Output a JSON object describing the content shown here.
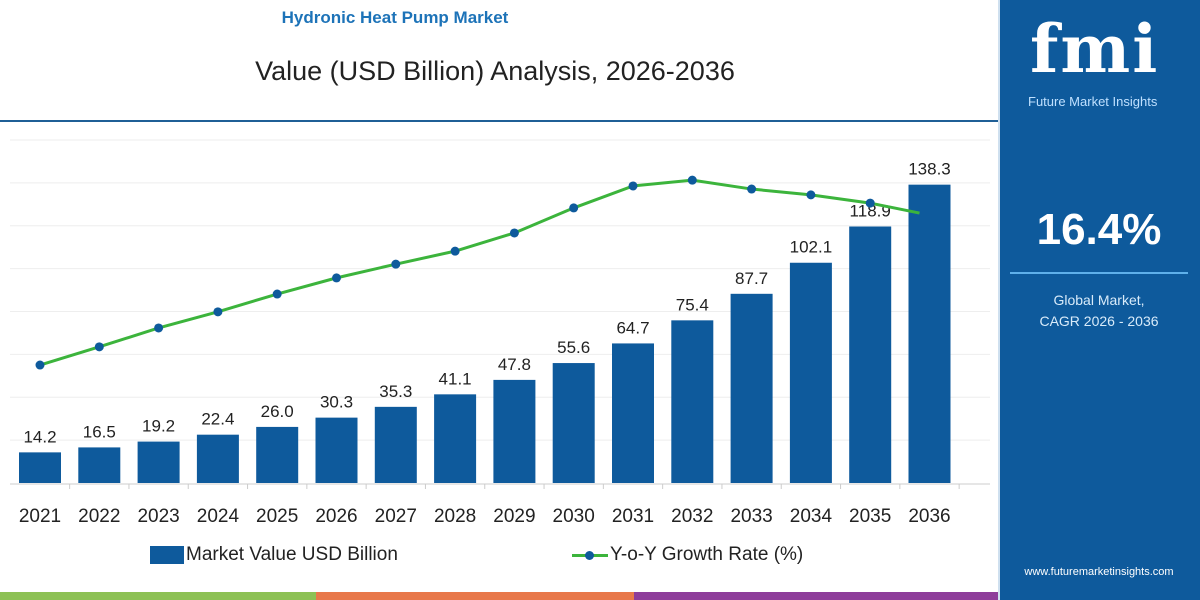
{
  "header": {
    "title": "Hydronic Heat Pump Market",
    "subtitle": "Value (USD Billion) Analysis, 2026-2036"
  },
  "sidebar": {
    "logo_text": "fmi",
    "logo_subtitle": "Future Market Insights",
    "cagr_value": "16.4%",
    "cagr_label_1": "Global Market,",
    "cagr_label_2": "CAGR 2026 - 2036",
    "website": "www.futuremarketinsights.com"
  },
  "colors": {
    "bar": "#0e5a9c",
    "line": "#3cb43c",
    "marker": "#0e5a9c",
    "panel": "#0e5a9c",
    "stripes": [
      "#8dc155",
      "#e8784a",
      "#8e3d9a"
    ]
  },
  "chart_data": {
    "type": "bar+line",
    "title": "Value (USD Billion) Analysis, 2026-2036",
    "categories": [
      "2021",
      "2022",
      "2023",
      "2024",
      "2025",
      "2026",
      "2027",
      "2028",
      "2029",
      "2030",
      "2031",
      "2032",
      "2033",
      "2034",
      "2035",
      "2036"
    ],
    "series": [
      {
        "name": "Market Value USD Billion",
        "type": "bar",
        "values": [
          14.2,
          16.5,
          19.2,
          22.4,
          26.0,
          30.3,
          35.3,
          41.1,
          47.8,
          55.6,
          64.7,
          75.4,
          87.7,
          102.1,
          118.9,
          138.3
        ],
        "labels": [
          "14.2",
          "16.5",
          "19.2",
          "22.4",
          "26.0",
          "30.3",
          "35.3",
          "41.1",
          "47.8",
          "55.6",
          "64.7",
          "75.4",
          "87.7",
          "102.1",
          "118.9",
          "138.3"
        ]
      },
      {
        "name": "Y-o-Y Growth Rate (%)",
        "type": "line",
        "axis": "hidden, relative scale 0-100",
        "values": [
          34.4,
          39.7,
          45.2,
          49.9,
          55.1,
          59.8,
          63.8,
          67.6,
          72.9,
          80.2,
          86.6,
          88.3,
          85.7,
          84.0,
          81.6,
          78.7
        ]
      }
    ],
    "ylim": [
      0,
      159
    ],
    "grid": true,
    "legend": "bottom"
  }
}
